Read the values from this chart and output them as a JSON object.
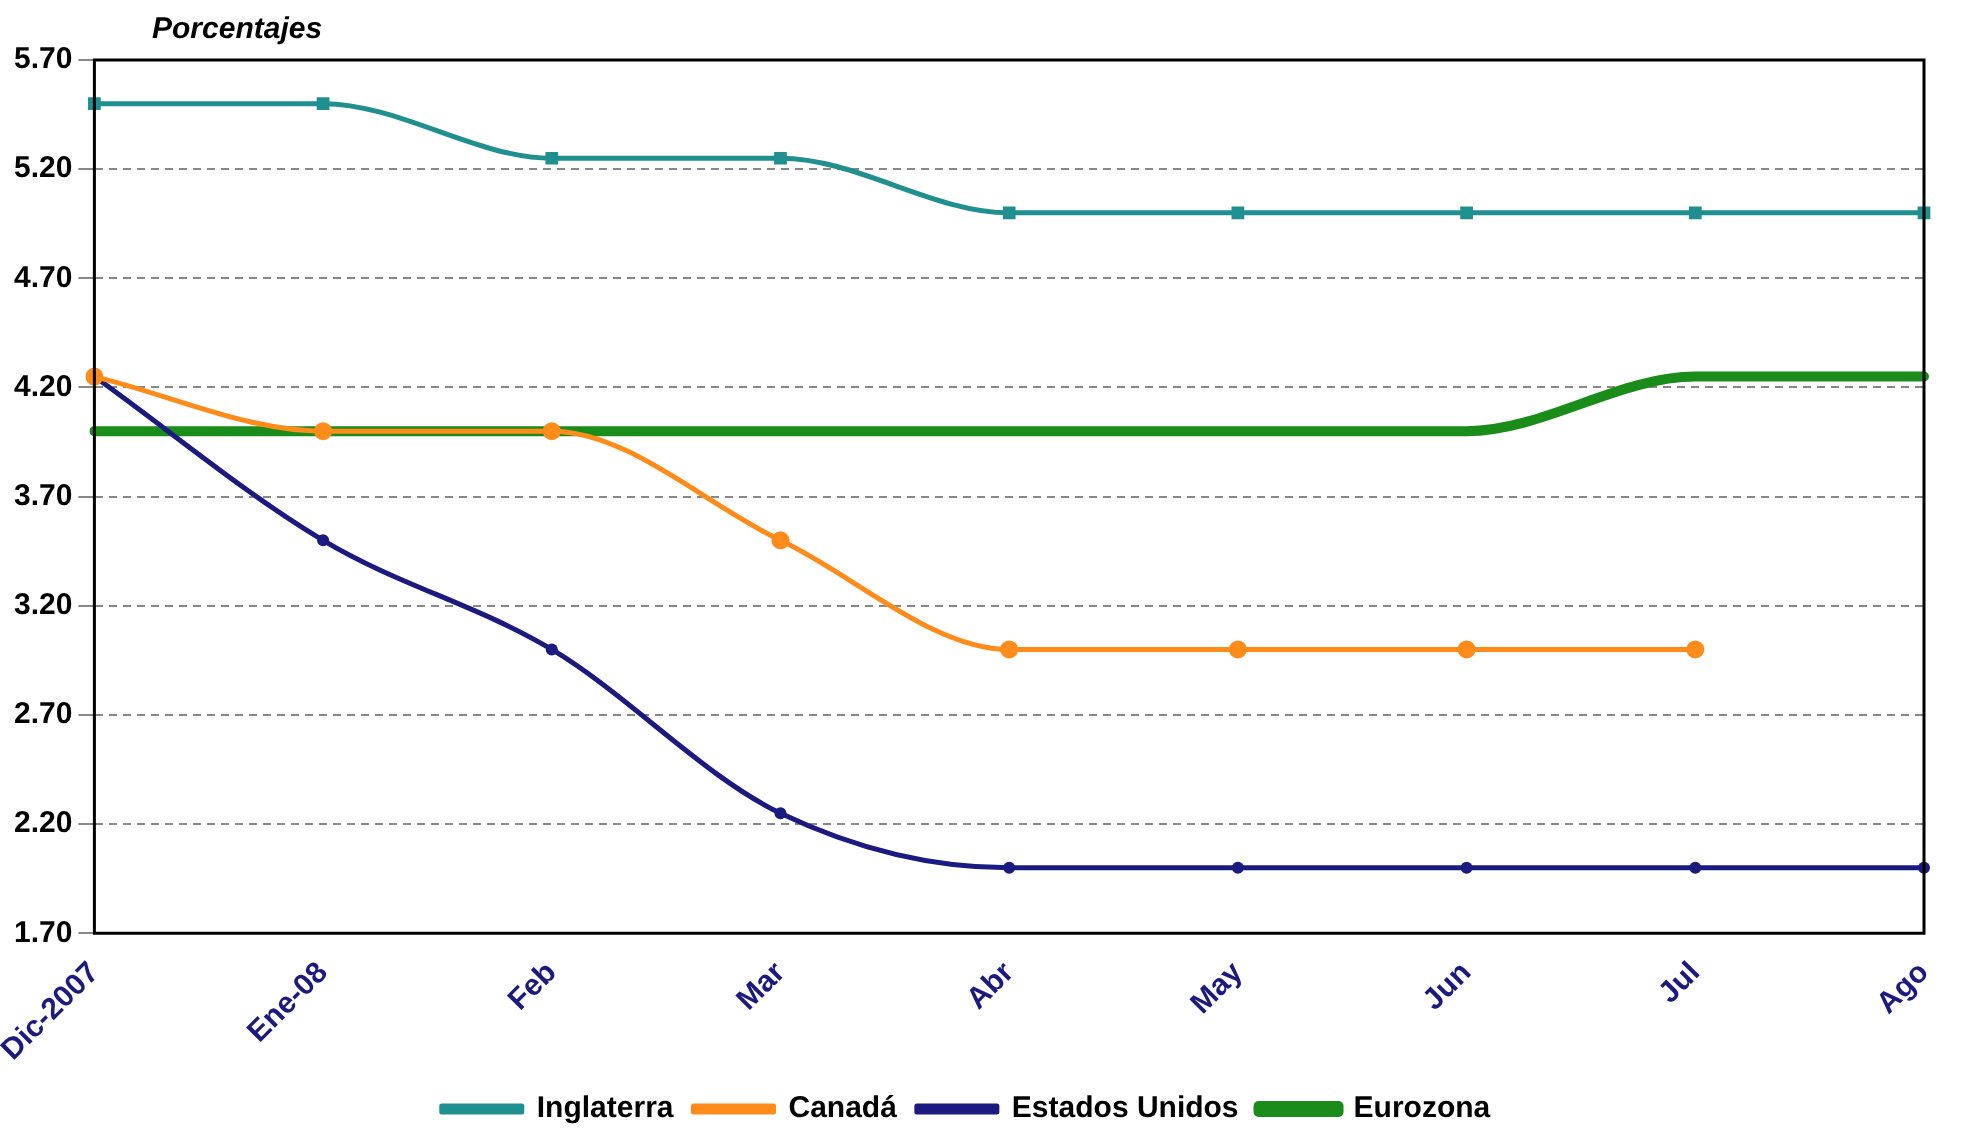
{
  "chart_data": {
    "type": "line",
    "ylabel": "Porcentajes",
    "categories": [
      "Dic-2007",
      "Ene-08",
      "Feb",
      "Mar",
      "Abr",
      "May",
      "Jun",
      "Jul",
      "Ago"
    ],
    "series": [
      {
        "name": "Inglaterra",
        "color": "#1f8f8f",
        "marker": "square",
        "values": [
          5.5,
          5.5,
          5.25,
          5.25,
          5.0,
          5.0,
          5.0,
          5.0,
          5.0
        ]
      },
      {
        "name": "Canadá",
        "color": "#ff8c1a",
        "marker": "circle",
        "values": [
          4.25,
          4.0,
          4.0,
          3.5,
          3.0,
          3.0,
          3.0,
          3.0,
          null
        ]
      },
      {
        "name": "Estados Unidos",
        "color": "#1a1a80",
        "marker": "circle",
        "values": [
          4.25,
          3.5,
          3.0,
          2.25,
          2.0,
          2.0,
          2.0,
          2.0,
          2.0
        ]
      },
      {
        "name": "Eurozona",
        "color": "#1a8c1a",
        "marker": "none",
        "values": [
          4.0,
          4.0,
          4.0,
          4.0,
          4.0,
          4.0,
          4.0,
          4.25,
          4.25
        ]
      }
    ],
    "ylim": [
      1.7,
      5.7
    ],
    "yticks": [
      {
        "value": 1.7,
        "label": "1.70"
      },
      {
        "value": 2.2,
        "label": "2.20"
      },
      {
        "value": 2.7,
        "label": "2.70"
      },
      {
        "value": 3.2,
        "label": "3.20"
      },
      {
        "value": 3.7,
        "label": "3.70"
      },
      {
        "value": 4.2,
        "label": "4.20"
      },
      {
        "value": 4.7,
        "label": "4.70"
      },
      {
        "value": 5.2,
        "label": "5.20"
      },
      {
        "value": 5.7,
        "label": "5.70"
      }
    ],
    "grid": "y",
    "legend": "bottom",
    "line_style": "solid"
  }
}
